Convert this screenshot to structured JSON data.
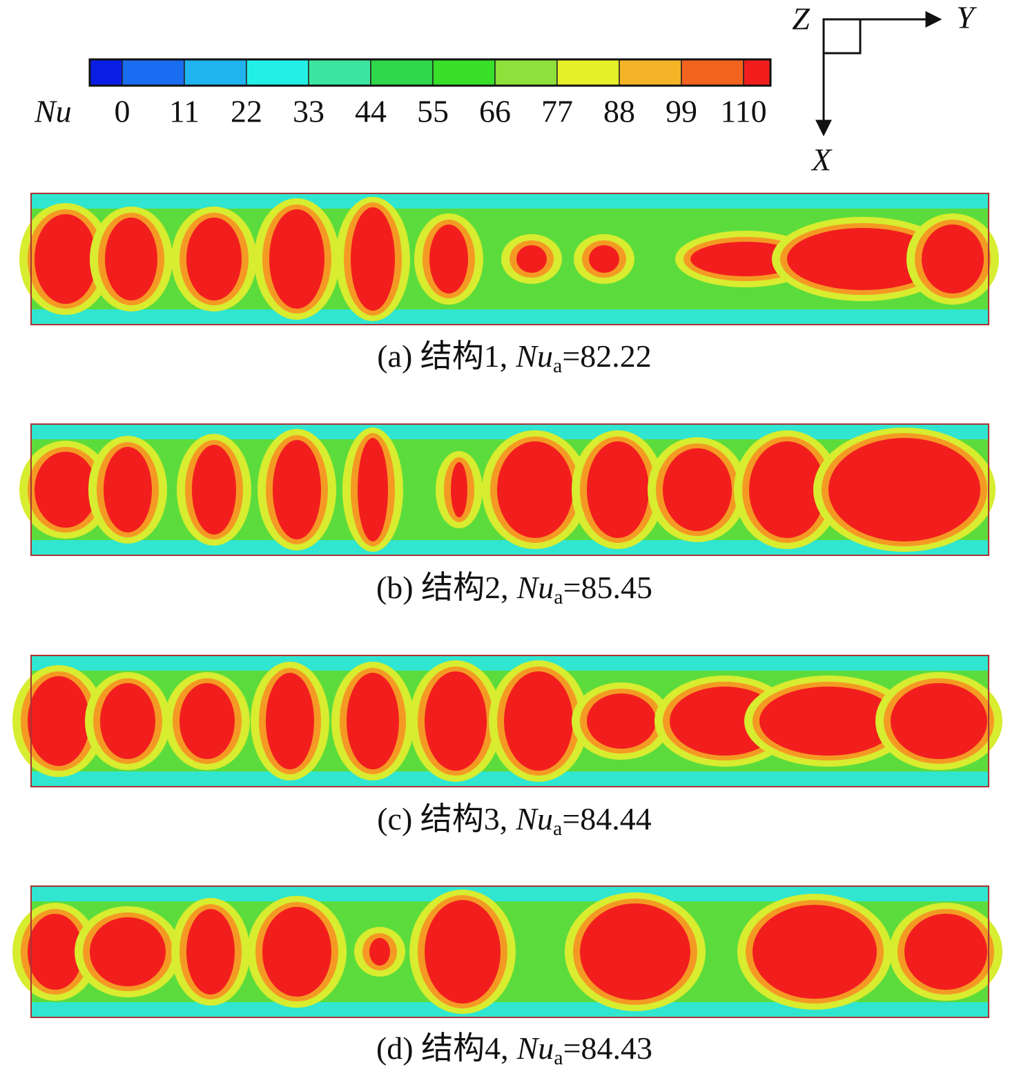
{
  "colorbar": {
    "label": "Nu",
    "colors": [
      "#0a1ee6",
      "#1a6cf0",
      "#1fb4f0",
      "#22f0e6",
      "#3ce6a0",
      "#2ed84a",
      "#38e02a",
      "#8ee03a",
      "#e6f028",
      "#f4b428",
      "#f2641e",
      "#f21e1e"
    ],
    "ticks": [
      0,
      11,
      22,
      33,
      44,
      55,
      66,
      77,
      88,
      99,
      110
    ]
  },
  "axes": {
    "z": "Z",
    "y": "Y",
    "x": "X"
  },
  "panels": [
    {
      "caption": {
        "label": "(a) 结构1,",
        "symbol": "Nu",
        "subscript": "a",
        "value": "=82.22"
      }
    },
    {
      "caption": {
        "label": "(b) 结构2,",
        "symbol": "Nu",
        "subscript": "a",
        "value": "=85.45"
      }
    },
    {
      "caption": {
        "label": "(c) 结构3,",
        "symbol": "Nu",
        "subscript": "a",
        "value": "=84.44"
      }
    },
    {
      "caption": {
        "label": "(d) 结构4,",
        "symbol": "Nu",
        "subscript": "a",
        "value": "=84.43"
      }
    }
  ]
}
